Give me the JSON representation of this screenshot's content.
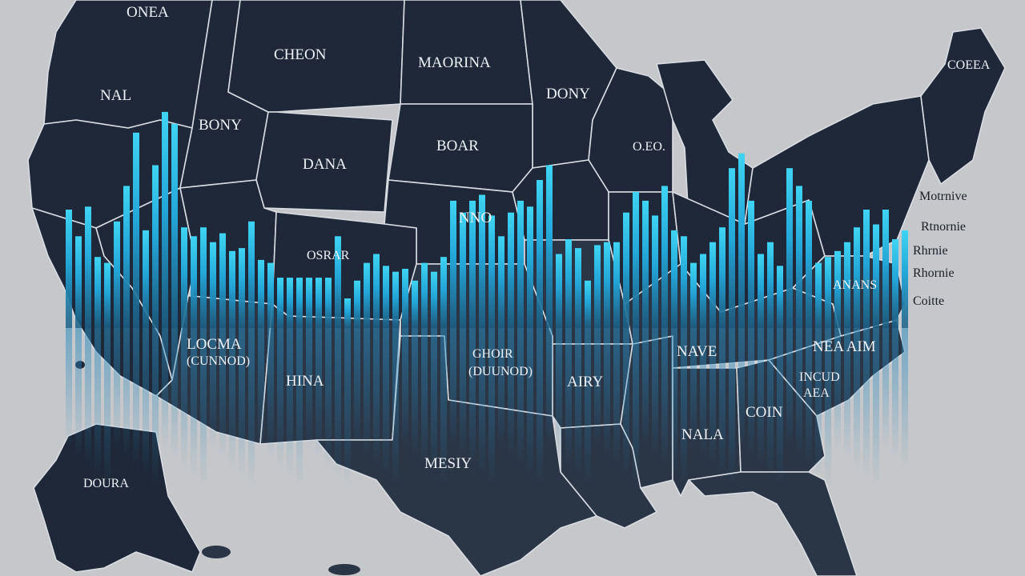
{
  "map_title": "",
  "colors": {
    "background": "#c5c7ca",
    "land": "#1e2838",
    "land_south": "#2a3546",
    "border": "#d9dde3",
    "bar_top": "#3fd4f3",
    "bar_bottom": "#1c5f86",
    "label": "#eef2f6",
    "label_outside": "#1a1f27"
  },
  "labels": {
    "onea": "ONEA",
    "nal": "NAL",
    "cheon": "CHEON",
    "moarina": "MAORINA",
    "bony": "BONY",
    "dana": "DANA",
    "boar": "BOAR",
    "dony": "DONY",
    "nno": "NNO",
    "osrar": "OSRAR",
    "oeo": "O.EO.",
    "coeea": "COEEA",
    "locma": "LOCMA",
    "cunnod": "(CUNNOD)",
    "hina": "HINA",
    "ghoir": "GHOIR",
    "duunod": "(DUUNOD)",
    "airy": "AIRY",
    "nave": "NAVE",
    "alabama": "NALA",
    "coin": "COIN",
    "neaim": "NEA AIM",
    "mcud": "INCUD",
    "aea": "AEA",
    "anans": "ANANS",
    "mesiy": "MESIY",
    "doura": "DOURA"
  },
  "side_labels": [
    "Motrnive",
    "Rtnornie",
    "Rhrnie",
    "Rhornie",
    "Coitte"
  ],
  "bars": {
    "rel_heights": [
      0.4,
      0.31,
      0.41,
      0.24,
      0.22,
      0.36,
      0.48,
      0.66,
      0.33,
      0.55,
      0.73,
      0.69,
      0.34,
      0.31,
      0.34,
      0.29,
      0.32,
      0.26,
      0.27,
      0.36,
      0.23,
      0.22,
      0.17,
      0.17,
      0.17,
      0.17,
      0.17,
      0.17,
      0.31,
      0.1,
      0.16,
      0.22,
      0.25,
      0.21,
      0.19,
      0.2,
      0.16,
      0.22,
      0.19,
      0.24,
      0.43,
      0.39,
      0.43,
      0.45,
      0.38,
      0.31,
      0.39,
      0.43,
      0.41,
      0.5,
      0.55,
      0.25,
      0.3,
      0.27,
      0.16,
      0.28,
      0.29,
      0.29,
      0.39,
      0.46,
      0.43,
      0.38,
      0.48,
      0.33,
      0.31,
      0.22,
      0.25,
      0.29,
      0.34,
      0.54,
      0.59,
      0.43,
      0.25,
      0.29,
      0.21,
      0.54,
      0.48,
      0.43,
      0.22,
      0.24,
      0.26,
      0.29,
      0.34,
      0.4,
      0.35,
      0.4,
      0.3,
      0.33
    ]
  }
}
